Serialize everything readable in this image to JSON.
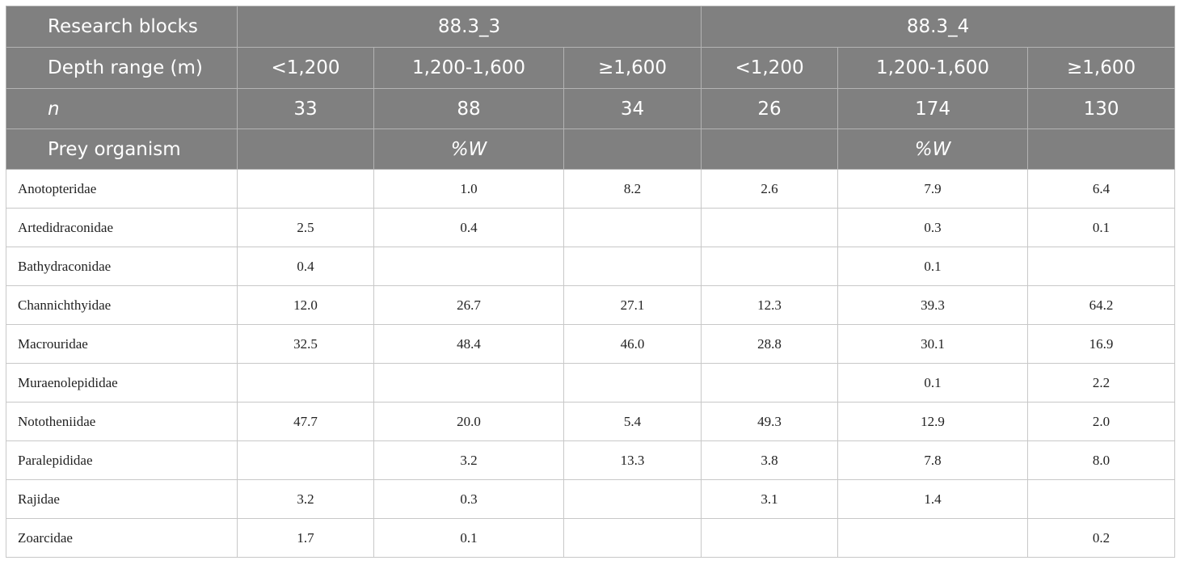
{
  "table": {
    "header": [
      [
        "Research blocks",
        "88.3_3",
        "88.3_4"
      ],
      [
        "Depth range (m)",
        "<1,200",
        "1,200-1,600",
        "≥1,600",
        "<1,200",
        "1,200-1,600",
        "≥1,600"
      ],
      [
        "n",
        "33",
        "88",
        "34",
        "26",
        "174",
        "130"
      ],
      [
        "Prey organism",
        null,
        "%W",
        null,
        null,
        "%W",
        null
      ]
    ],
    "rows": [
      [
        "Anotopteridae",
        null,
        "1.0",
        "8.2",
        "2.6",
        "7.9",
        "6.4"
      ],
      [
        "Artedidraconidae",
        "2.5",
        "0.4",
        null,
        null,
        "0.3",
        "0.1"
      ],
      [
        "Bathydraconidae",
        "0.4",
        null,
        null,
        null,
        "0.1",
        null
      ],
      [
        "Channichthyidae",
        "12.0",
        "26.7",
        "27.1",
        "12.3",
        "39.3",
        "64.2"
      ],
      [
        "Macrouridae",
        "32.5",
        "48.4",
        "46.0",
        "28.8",
        "30.1",
        "16.9"
      ],
      [
        "Muraenolepididae",
        null,
        null,
        null,
        null,
        "0.1",
        "2.2"
      ],
      [
        "Nototheniidae",
        "47.7",
        "20.0",
        "5.4",
        "49.3",
        "12.9",
        "2.0"
      ],
      [
        "Paralepididae",
        null,
        "3.2",
        "13.3",
        "3.8",
        "7.8",
        "8.0"
      ],
      [
        "Rajidae",
        "3.2",
        "0.3",
        null,
        "3.1",
        "1.4",
        null
      ],
      [
        "Zoarcidae",
        "1.7",
        "0.1",
        null,
        null,
        null,
        "0.2"
      ]
    ]
  }
}
